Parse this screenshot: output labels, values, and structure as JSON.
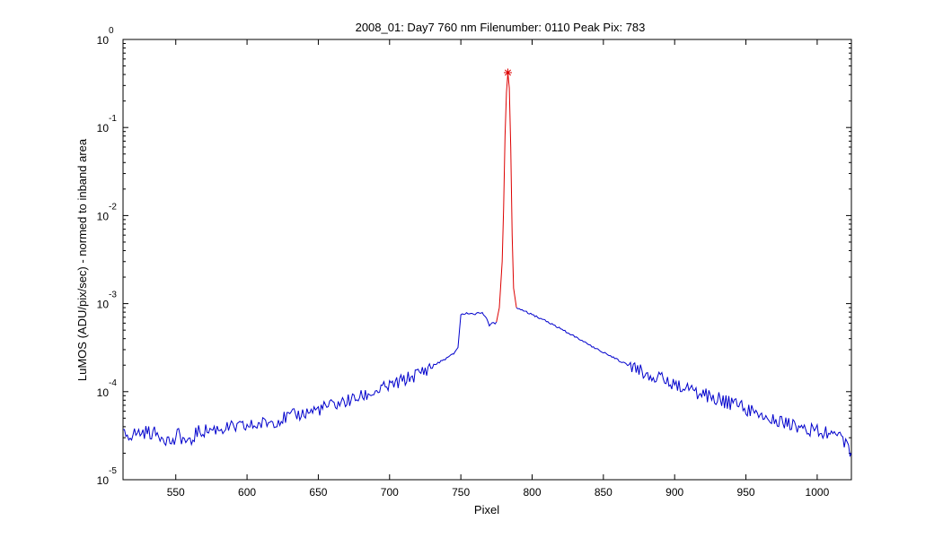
{
  "chart_data": {
    "type": "line",
    "title": "2008_01: Day7  760 nm  Filenumber: 0110 Peak Pix: 783",
    "xlabel": "Pixel",
    "ylabel": "LuMOS (ADU/pix/sec) - normed to inband area",
    "xlim": [
      513,
      1024
    ],
    "ylim": [
      1e-05,
      1
    ],
    "yscale": "log",
    "grid": false,
    "x_ticks": [
      550,
      600,
      650,
      700,
      750,
      800,
      850,
      900,
      950,
      1000
    ],
    "y_ticks": [
      {
        "value": 1,
        "base": "10",
        "exponent": "0"
      },
      {
        "value": 0.1,
        "base": "10",
        "exponent": "-1"
      },
      {
        "value": 0.01,
        "base": "10",
        "exponent": "-2"
      },
      {
        "value": 0.001,
        "base": "10",
        "exponent": "-3"
      },
      {
        "value": 0.0001,
        "base": "10",
        "exponent": "-4"
      },
      {
        "value": 1e-05,
        "base": "10",
        "exponent": "-5"
      }
    ],
    "series": [
      {
        "color": "#0000cc",
        "x": [
          513,
          520,
          530,
          540,
          548,
          552,
          556,
          560,
          564,
          570,
          580,
          590,
          600,
          610,
          620,
          630,
          640,
          650,
          660,
          670,
          680,
          690,
          700,
          710,
          720,
          730,
          740,
          745,
          748,
          750,
          755,
          760,
          765,
          768,
          770,
          772,
          774,
          775
        ],
        "y": [
          3.2e-05,
          3.3e-05,
          3.5e-05,
          3.2e-05,
          2.6e-05,
          3.3e-05,
          2.8e-05,
          2.5e-05,
          3.4e-05,
          3.6e-05,
          3.8e-05,
          3.9e-05,
          4e-05,
          4.3e-05,
          4.7e-05,
          5.2e-05,
          5.7e-05,
          6.3e-05,
          7e-05,
          7.8e-05,
          8.7e-05,
          0.0001,
          0.000115,
          0.000135,
          0.00016,
          0.000195,
          0.00024,
          0.00027,
          0.00032,
          0.00075,
          0.00078,
          0.00076,
          0.0008,
          0.00068,
          0.00055,
          0.00061,
          0.0006,
          0.00062
        ]
      },
      {
        "color": "#dd0000",
        "x": [
          775,
          777,
          779,
          780,
          781,
          782,
          783,
          784,
          785,
          786,
          787,
          789
        ],
        "y": [
          0.00062,
          0.0009,
          0.003,
          0.012,
          0.08,
          0.25,
          0.42,
          0.28,
          0.06,
          0.006,
          0.0015,
          0.0009
        ]
      },
      {
        "color": "#0000cc",
        "x": [
          789,
          795,
          800,
          810,
          820,
          830,
          840,
          850,
          860,
          870,
          880,
          890,
          900,
          910,
          920,
          930,
          940,
          950,
          960,
          965,
          970,
          980,
          990,
          1000,
          1005,
          1010,
          1015,
          1020,
          1024
        ],
        "y": [
          0.0009,
          0.00082,
          0.00075,
          0.00063,
          0.00052,
          0.00042,
          0.00034,
          0.00028,
          0.00023,
          0.00019,
          0.00016,
          0.00014,
          0.00012,
          0.000105,
          9.4e-05,
          8.3e-05,
          7.3e-05,
          6.4e-05,
          5.7e-05,
          5.2e-05,
          4.9e-05,
          4.2e-05,
          3.9e-05,
          3.6e-05,
          3.4e-05,
          3.6e-05,
          3e-05,
          2.5e-05,
          2e-05
        ]
      }
    ],
    "peak_marker": {
      "x": 783,
      "y": 0.42,
      "color": "#dd0000",
      "symbol": "*"
    }
  }
}
